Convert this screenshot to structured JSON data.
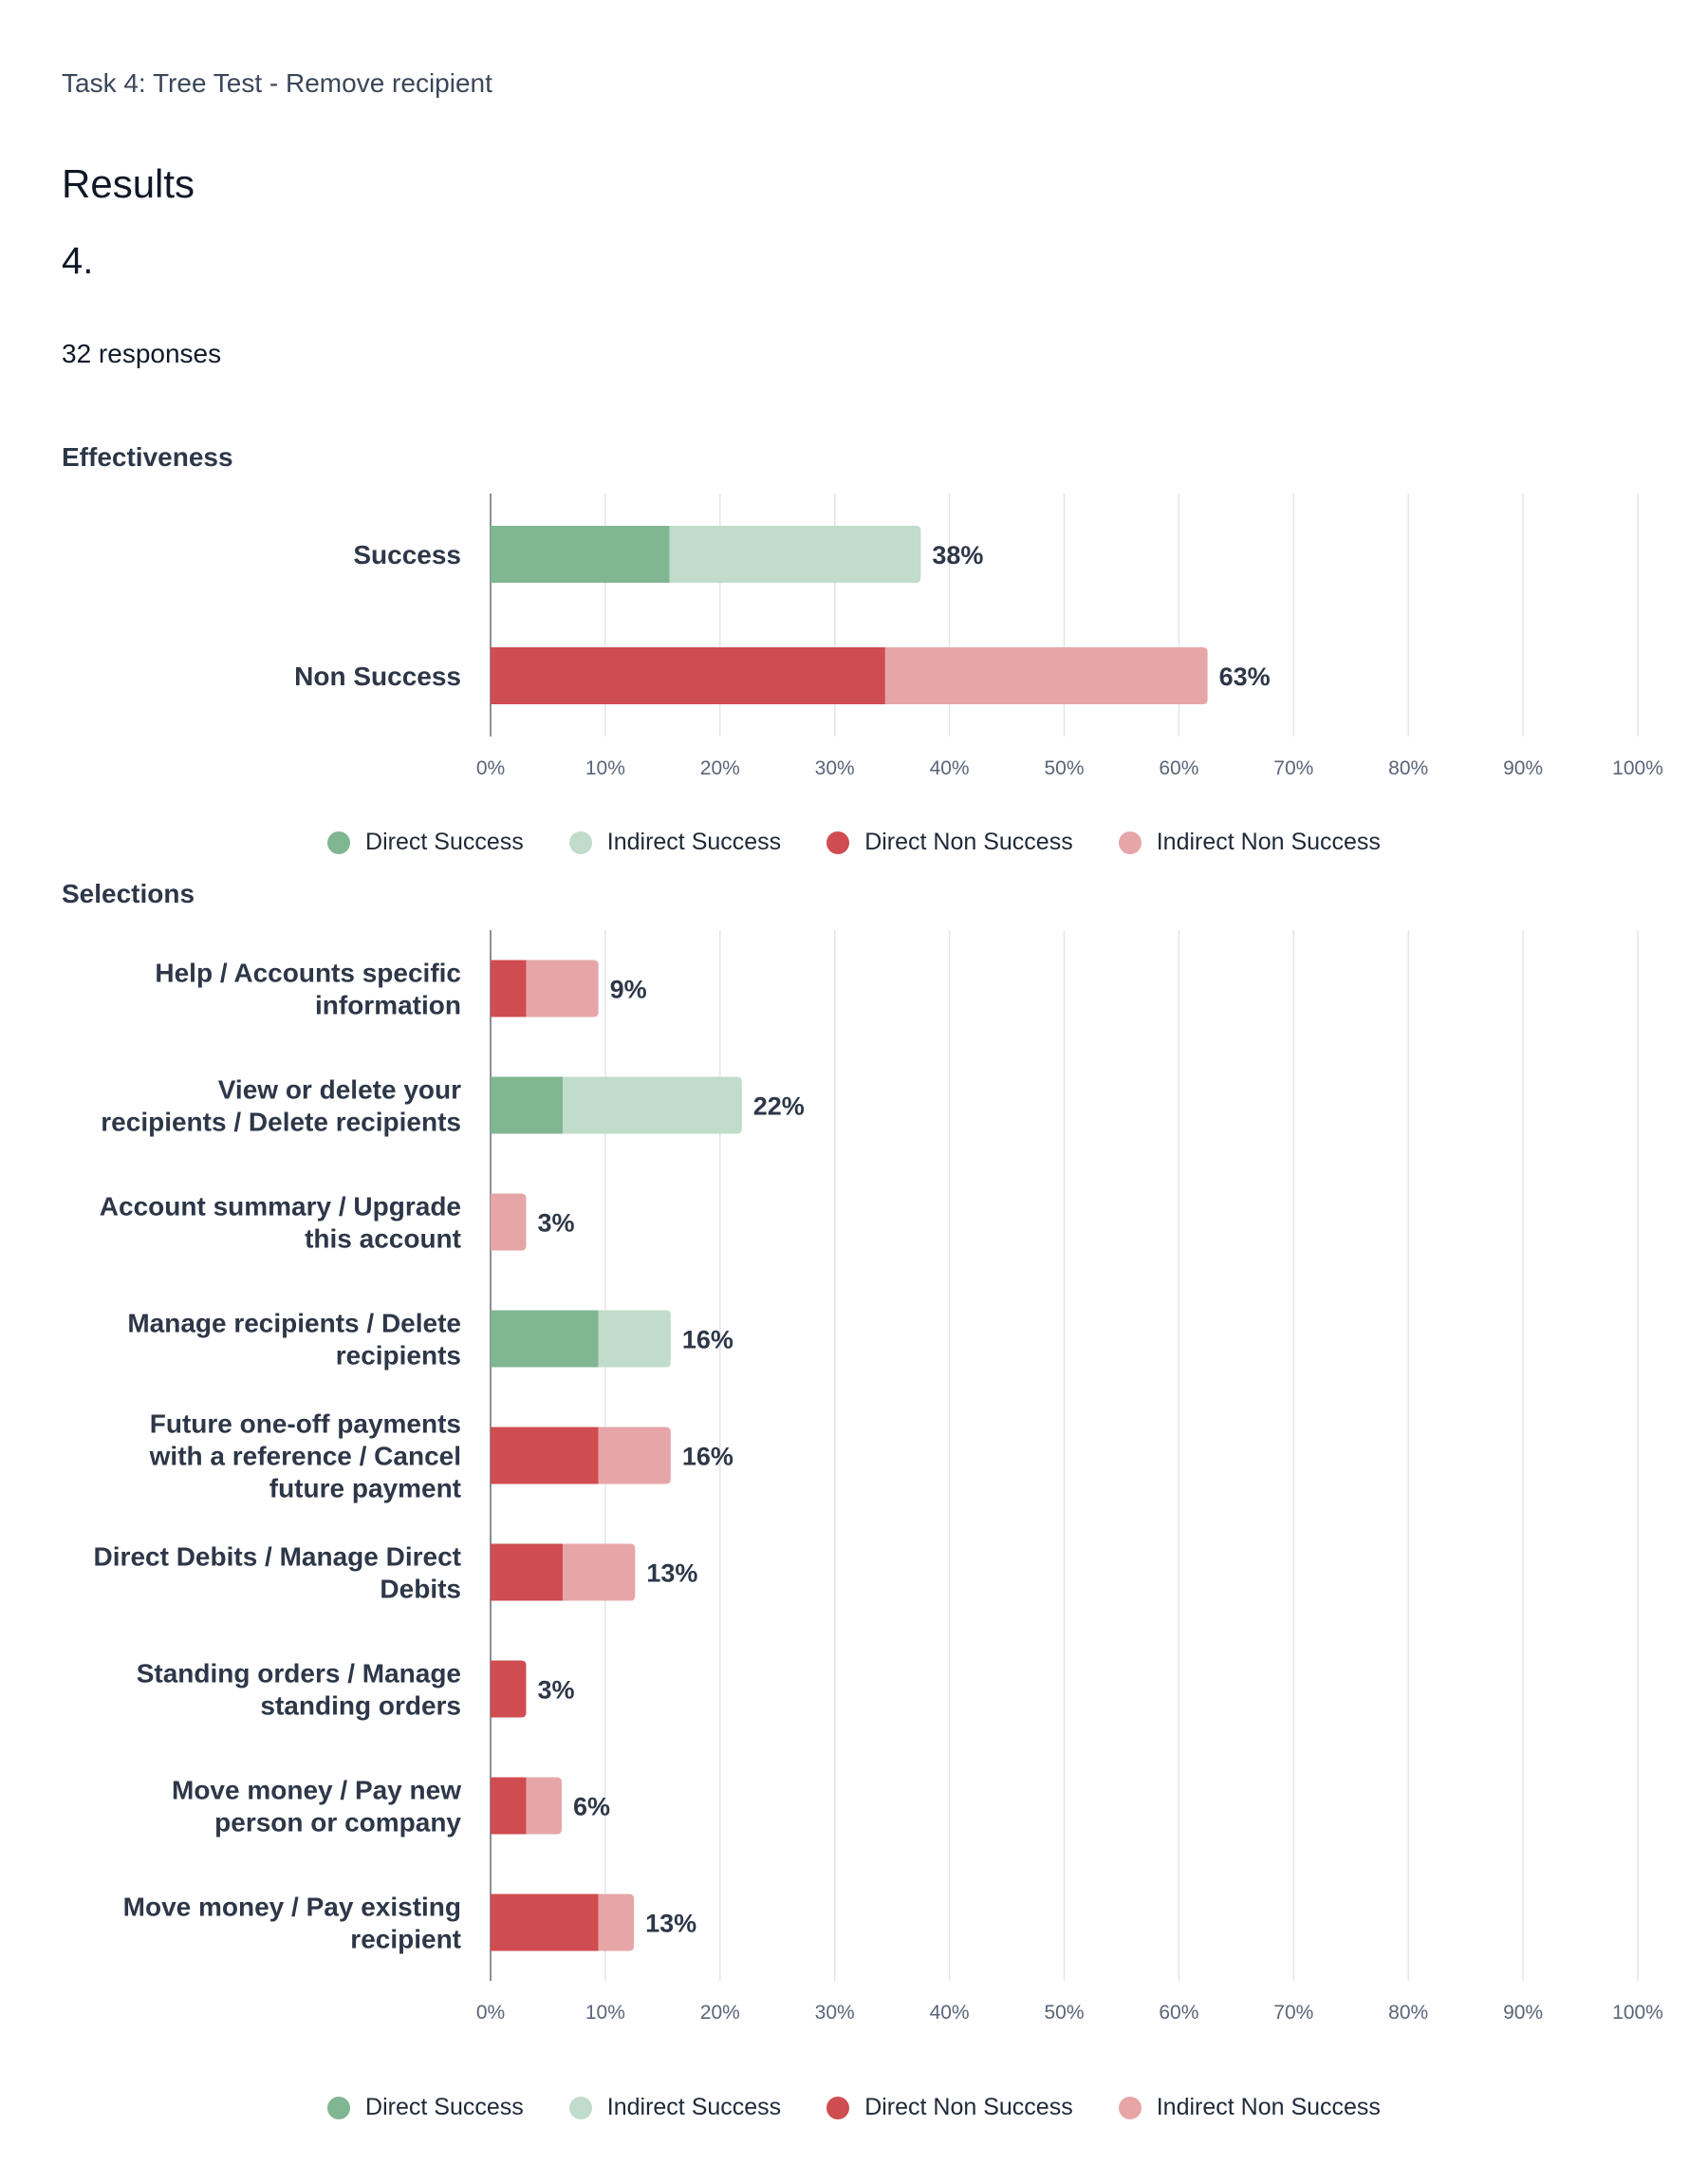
{
  "header": {
    "task": "Task 4: Tree Test - Remove recipient",
    "results": "Results",
    "question_number": "4.",
    "responses": "32 responses"
  },
  "colors": {
    "direct_success": "#80b691",
    "indirect_success": "#c1dcca",
    "direct_non_success": "#cf4c50",
    "indirect_non_success": "#e6a6a8"
  },
  "legend": [
    {
      "label": "Direct Success",
      "color": "#80b691"
    },
    {
      "label": "Indirect Success",
      "color": "#c1dcca"
    },
    {
      "label": "Direct Non Success",
      "color": "#cf4c50"
    },
    {
      "label": "Indirect Non Success",
      "color": "#e6a6a8"
    }
  ],
  "chart_data": [
    {
      "type": "bar",
      "orientation": "horizontal",
      "stacked": true,
      "title": "Effectiveness",
      "xlim": [
        0,
        100
      ],
      "x_ticks": [
        "0%",
        "10%",
        "20%",
        "30%",
        "40%",
        "50%",
        "60%",
        "70%",
        "80%",
        "90%",
        "100%"
      ],
      "grid": true,
      "legend_position": "bottom",
      "categories": [
        [
          "Success"
        ],
        [
          "Non Success"
        ]
      ],
      "series": [
        {
          "name": "Direct Success",
          "values": [
            15.6,
            0
          ]
        },
        {
          "name": "Indirect Success",
          "values": [
            21.9,
            0
          ]
        },
        {
          "name": "Direct Non Success",
          "values": [
            0,
            34.4
          ]
        },
        {
          "name": "Indirect Non Success",
          "values": [
            0,
            28.1
          ]
        }
      ],
      "totals": [
        "38%",
        "63%"
      ]
    },
    {
      "type": "bar",
      "orientation": "horizontal",
      "stacked": true,
      "title": "Selections",
      "xlim": [
        0,
        100
      ],
      "x_ticks": [
        "0%",
        "10%",
        "20%",
        "30%",
        "40%",
        "50%",
        "60%",
        "70%",
        "80%",
        "90%",
        "100%"
      ],
      "grid": true,
      "legend_position": "bottom",
      "categories": [
        [
          "Help / Accounts specific",
          "information"
        ],
        [
          "View or delete your",
          "recipients / Delete recipients"
        ],
        [
          "Account summary / Upgrade",
          "this account"
        ],
        [
          "Manage recipients / Delete",
          "recipients"
        ],
        [
          "Future one-off payments",
          "with a reference / Cancel",
          "future payment"
        ],
        [
          "Direct Debits / Manage Direct",
          "Debits"
        ],
        [
          "Standing orders / Manage",
          "standing orders"
        ],
        [
          "Move money / Pay new",
          "person or company"
        ],
        [
          "Move money / Pay existing",
          "recipient"
        ]
      ],
      "series": [
        {
          "name": "Direct Success",
          "values": [
            0,
            6.3,
            0,
            9.4,
            0,
            0,
            0,
            0,
            0
          ]
        },
        {
          "name": "Indirect Success",
          "values": [
            0,
            15.6,
            0,
            6.3,
            0,
            0,
            0,
            0,
            0
          ]
        },
        {
          "name": "Direct Non Success",
          "values": [
            3.1,
            0,
            0,
            0,
            9.4,
            6.3,
            3.1,
            3.1,
            9.4
          ]
        },
        {
          "name": "Indirect Non Success",
          "values": [
            6.3,
            0,
            3.1,
            0,
            6.3,
            6.3,
            0,
            3.1,
            3.1
          ]
        }
      ],
      "totals": [
        "9%",
        "22%",
        "3%",
        "16%",
        "16%",
        "13%",
        "3%",
        "6%",
        "13%"
      ]
    }
  ]
}
